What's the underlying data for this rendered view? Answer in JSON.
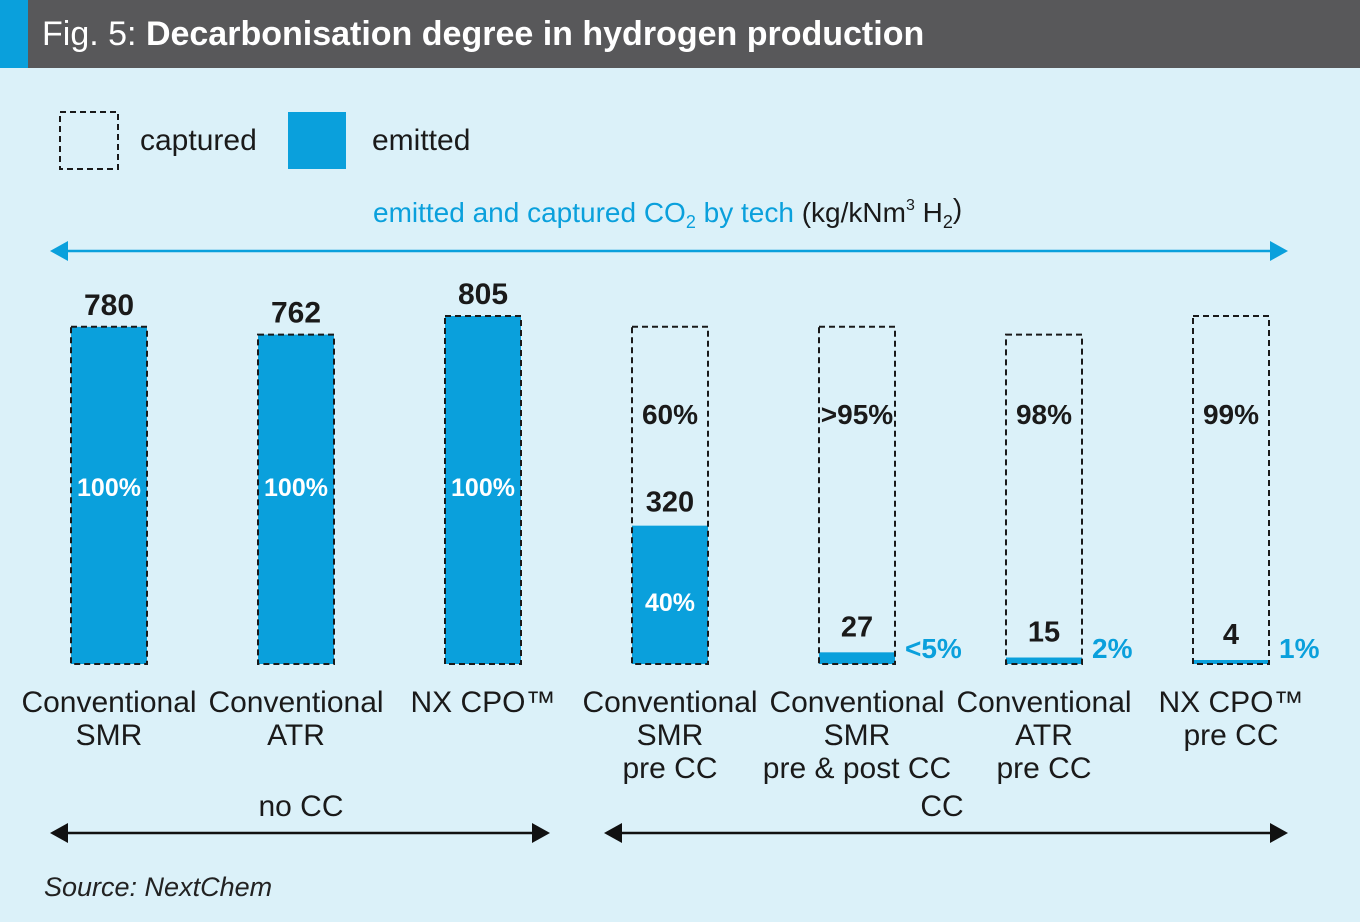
{
  "header": {
    "fig_prefix": "Fig. 5:",
    "title": "Decarbonisation degree in hydrogen production"
  },
  "colors": {
    "header_bg": "#58585a",
    "accent": "#0aa0dc",
    "background": "#dbf1f9",
    "emitted": "#0aa0dc",
    "text": "#1a1a1a"
  },
  "source": "Source: NextChem",
  "chart_data": {
    "type": "bar",
    "title": "emitted and captured CO2 by tech",
    "title_parts": {
      "main": "emitted and captured CO",
      "main_sub": "2",
      "by": " by tech ",
      "unit_open": "(kg/kNm",
      "unit_sup": "3",
      "unit_h": " H",
      "unit_sub": "2",
      "unit_close": ")"
    },
    "legend": [
      {
        "name": "captured",
        "style": "dashed-outline"
      },
      {
        "name": "emitted",
        "style": "solid"
      }
    ],
    "groups": [
      {
        "name": "no CC",
        "start": 0,
        "end": 2
      },
      {
        "name": "CC",
        "start": 3,
        "end": 6
      }
    ],
    "ylim": [
      0,
      805
    ],
    "bars": [
      {
        "label": [
          "Conventional",
          "SMR"
        ],
        "total": 780,
        "emitted": 780,
        "total_label": "780",
        "emitted_pct": "100%",
        "captured_pct": ""
      },
      {
        "label": [
          "Conventional",
          "ATR"
        ],
        "total": 762,
        "emitted": 762,
        "total_label": "762",
        "emitted_pct": "100%",
        "captured_pct": ""
      },
      {
        "label": [
          "NX CPO™"
        ],
        "total": 805,
        "emitted": 805,
        "total_label": "805",
        "emitted_pct": "100%",
        "captured_pct": ""
      },
      {
        "label": [
          "Conventional",
          "SMR",
          "pre CC"
        ],
        "total": 780,
        "emitted": 320,
        "emitted_label": "320",
        "emitted_pct": "40%",
        "captured_pct": "60%"
      },
      {
        "label": [
          "Conventional",
          "SMR",
          "pre & post CC"
        ],
        "total": 780,
        "emitted": 27,
        "emitted_label": "27",
        "emitted_pct": "<5%",
        "captured_pct": ">95%"
      },
      {
        "label": [
          "Conventional",
          "ATR",
          "pre CC"
        ],
        "total": 762,
        "emitted": 15,
        "emitted_label": "15",
        "emitted_pct": "2%",
        "captured_pct": "98%"
      },
      {
        "label": [
          "NX CPO™",
          "pre CC"
        ],
        "total": 805,
        "emitted": 4,
        "emitted_label": "4",
        "emitted_pct": "1%",
        "captured_pct": "99%"
      }
    ]
  }
}
